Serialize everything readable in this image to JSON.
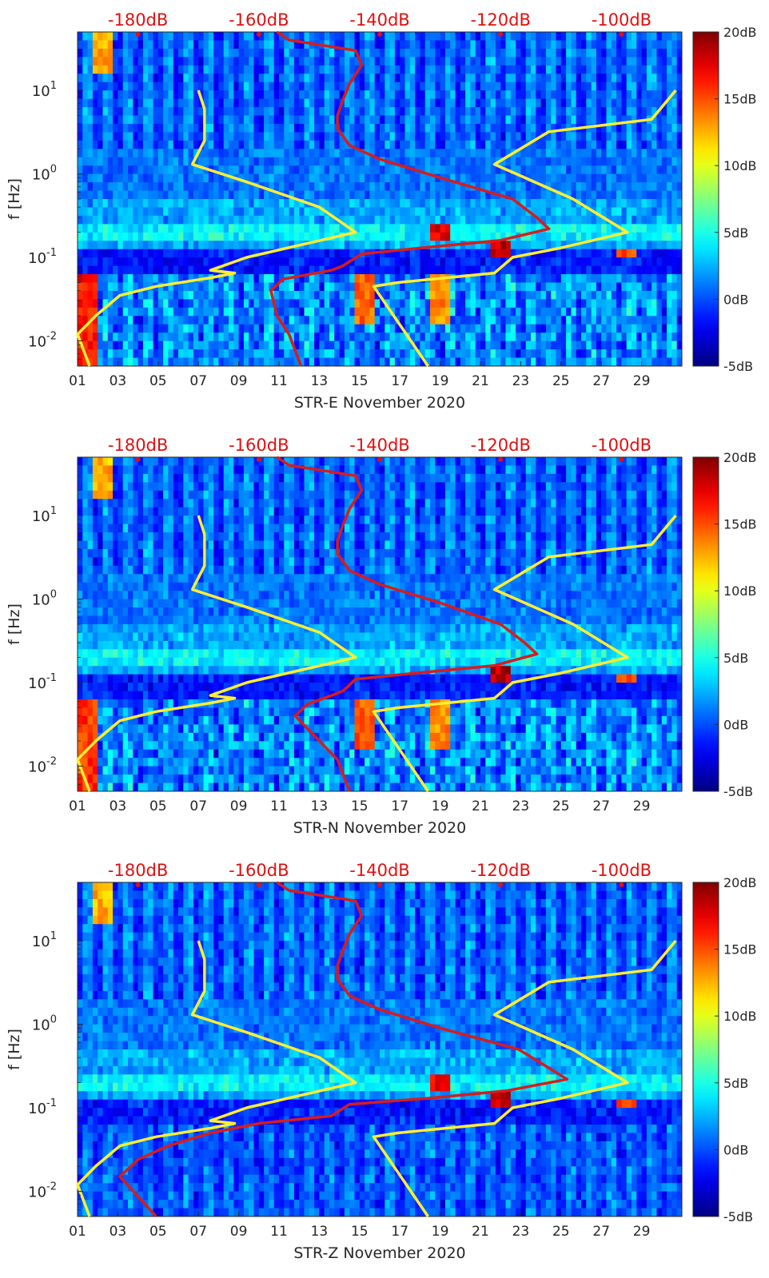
{
  "colors": {
    "red_curve": "#d81c1c",
    "yellow_curve": "#ffee33",
    "top_axis_text": "#e01010",
    "axis_text": "#262626",
    "colormap": [
      "#00008f",
      "#0000ff",
      "#0080ff",
      "#00ffff",
      "#80ff80",
      "#ffff00",
      "#ff8000",
      "#ff0000",
      "#800000"
    ]
  },
  "chart_data": [
    {
      "type": "heatmap",
      "title": "",
      "xlabel": "STR-E November 2020",
      "ylabel": "f [Hz]",
      "x_tick_labels": [
        "01",
        "03",
        "05",
        "07",
        "09",
        "11",
        "13",
        "15",
        "17",
        "19",
        "21",
        "23",
        "25",
        "27",
        "29"
      ],
      "x_tick_days": [
        1,
        3,
        5,
        7,
        9,
        11,
        13,
        15,
        17,
        19,
        21,
        23,
        25,
        27,
        29
      ],
      "xlim": [
        1,
        31
      ],
      "yscale": "log",
      "ylim": [
        0.005,
        50
      ],
      "y_tick_labels": [
        {
          "base": "10",
          "exp": "1",
          "value": 10
        },
        {
          "base": "10",
          "exp": "0",
          "value": 1
        },
        {
          "base": "10",
          "exp": "-1",
          "value": 0.1
        },
        {
          "base": "10",
          "exp": "-2",
          "value": 0.01
        }
      ],
      "top_axis": {
        "label_values": [
          -180,
          -160,
          -140,
          -120,
          -100
        ],
        "labels": [
          "-180dB",
          "-160dB",
          "-140dB",
          "-120dB",
          "-100dB"
        ],
        "range_db": [
          -190,
          -90
        ]
      },
      "colorbar": {
        "labels": [
          "20dB",
          "15dB",
          "10dB",
          "5dB",
          "0dB",
          "-5dB"
        ],
        "values": [
          20,
          15,
          10,
          5,
          0,
          -5
        ],
        "range": [
          -5,
          20
        ]
      },
      "red_curve_db_vs_f": [
        [
          -157,
          50
        ],
        [
          -155,
          40
        ],
        [
          -144,
          30
        ],
        [
          -143,
          20
        ],
        [
          -145,
          12
        ],
        [
          -146,
          8
        ],
        [
          -147,
          5
        ],
        [
          -147,
          3.5
        ],
        [
          -145,
          2.2
        ],
        [
          -140,
          1.5
        ],
        [
          -130,
          0.9
        ],
        [
          -118,
          0.5
        ],
        [
          -114,
          0.3
        ],
        [
          -112,
          0.22
        ],
        [
          -120,
          0.16
        ],
        [
          -133,
          0.13
        ],
        [
          -143,
          0.11
        ],
        [
          -146,
          0.08
        ],
        [
          -148,
          0.07
        ],
        [
          -156,
          0.055
        ],
        [
          -158,
          0.04
        ],
        [
          -157,
          0.02
        ],
        [
          -155,
          0.012
        ],
        [
          -153,
          0.005
        ]
      ],
      "yellow_left_db_vs_f": [
        [
          -170,
          10
        ],
        [
          -169,
          6
        ],
        [
          -169,
          2.5
        ],
        [
          -171,
          1.3
        ],
        [
          -162,
          0.8
        ],
        [
          -150,
          0.4
        ],
        [
          -144,
          0.2
        ],
        [
          -162,
          0.1
        ],
        [
          -168,
          0.07
        ],
        [
          -164,
          0.065
        ],
        [
          -168,
          0.057
        ],
        [
          -177,
          0.045
        ],
        [
          -183,
          0.035
        ],
        [
          -187,
          0.02
        ],
        [
          -190,
          0.012
        ],
        [
          -188,
          0.005
        ]
      ],
      "yellow_right_db_vs_f": [
        [
          -91,
          10
        ],
        [
          -95,
          4.5
        ],
        [
          -112,
          3.2
        ],
        [
          -121,
          1.3
        ],
        [
          -108,
          0.5
        ],
        [
          -99,
          0.2
        ],
        [
          -110,
          0.13
        ],
        [
          -118,
          0.1
        ],
        [
          -121,
          0.065
        ],
        [
          -137,
          0.05
        ],
        [
          -141,
          0.045
        ],
        [
          -132,
          0.005
        ]
      ],
      "hotspots": [
        {
          "day": 1.6,
          "f_lo": 0.005,
          "f_hi": 0.06,
          "level": 18
        },
        {
          "day": 2.2,
          "f_lo": 15,
          "f_hi": 45,
          "level": 14
        },
        {
          "day": 19.1,
          "f_lo": 0.16,
          "f_hi": 0.23,
          "level": 19
        },
        {
          "day": 22.1,
          "f_lo": 0.11,
          "f_hi": 0.15,
          "level": 20
        },
        {
          "day": 28.2,
          "f_lo": 0.11,
          "f_hi": 0.14,
          "level": 17
        },
        {
          "day": 15.3,
          "f_lo": 0.016,
          "f_hi": 0.06,
          "level": 16
        },
        {
          "day": 19.0,
          "f_lo": 0.016,
          "f_hi": 0.06,
          "level": 15
        }
      ]
    },
    {
      "type": "heatmap",
      "title": "",
      "xlabel": "STR-N November 2020",
      "ylabel": "f [Hz]",
      "x_tick_labels": [
        "01",
        "03",
        "05",
        "07",
        "09",
        "11",
        "13",
        "15",
        "17",
        "19",
        "21",
        "23",
        "25",
        "27",
        "29"
      ],
      "x_tick_days": [
        1,
        3,
        5,
        7,
        9,
        11,
        13,
        15,
        17,
        19,
        21,
        23,
        25,
        27,
        29
      ],
      "xlim": [
        1,
        31
      ],
      "yscale": "log",
      "ylim": [
        0.005,
        50
      ],
      "y_tick_labels": [
        {
          "base": "10",
          "exp": "1",
          "value": 10
        },
        {
          "base": "10",
          "exp": "0",
          "value": 1
        },
        {
          "base": "10",
          "exp": "-1",
          "value": 0.1
        },
        {
          "base": "10",
          "exp": "-2",
          "value": 0.01
        }
      ],
      "top_axis": {
        "label_values": [
          -180,
          -160,
          -140,
          -120,
          -100
        ],
        "labels": [
          "-180dB",
          "-160dB",
          "-140dB",
          "-120dB",
          "-100dB"
        ],
        "range_db": [
          -190,
          -90
        ]
      },
      "colorbar": {
        "labels": [
          "20dB",
          "15dB",
          "10dB",
          "5dB",
          "0dB",
          "-5dB"
        ],
        "values": [
          20,
          15,
          10,
          5,
          0,
          -5
        ],
        "range": [
          -5,
          20
        ]
      },
      "red_curve_db_vs_f": [
        [
          -157,
          50
        ],
        [
          -155,
          40
        ],
        [
          -144,
          30
        ],
        [
          -143,
          20
        ],
        [
          -145,
          12
        ],
        [
          -146,
          8
        ],
        [
          -147,
          5
        ],
        [
          -147,
          3.5
        ],
        [
          -145,
          2.2
        ],
        [
          -140,
          1.5
        ],
        [
          -130,
          0.9
        ],
        [
          -120,
          0.5
        ],
        [
          -116,
          0.3
        ],
        [
          -114,
          0.22
        ],
        [
          -121,
          0.16
        ],
        [
          -134,
          0.13
        ],
        [
          -144,
          0.11
        ],
        [
          -146,
          0.08
        ],
        [
          -148,
          0.07
        ],
        [
          -152,
          0.055
        ],
        [
          -154,
          0.04
        ],
        [
          -150,
          0.02
        ],
        [
          -147,
          0.012
        ],
        [
          -145,
          0.005
        ]
      ],
      "yellow_left_db_vs_f": [
        [
          -170,
          10
        ],
        [
          -169,
          6
        ],
        [
          -169,
          2.5
        ],
        [
          -171,
          1.3
        ],
        [
          -162,
          0.8
        ],
        [
          -150,
          0.4
        ],
        [
          -144,
          0.2
        ],
        [
          -162,
          0.1
        ],
        [
          -168,
          0.07
        ],
        [
          -164,
          0.065
        ],
        [
          -168,
          0.057
        ],
        [
          -177,
          0.045
        ],
        [
          -183,
          0.035
        ],
        [
          -187,
          0.02
        ],
        [
          -190,
          0.012
        ],
        [
          -188,
          0.005
        ]
      ],
      "yellow_right_db_vs_f": [
        [
          -91,
          10
        ],
        [
          -95,
          4.5
        ],
        [
          -112,
          3.2
        ],
        [
          -121,
          1.3
        ],
        [
          -108,
          0.5
        ],
        [
          -99,
          0.2
        ],
        [
          -110,
          0.13
        ],
        [
          -118,
          0.1
        ],
        [
          -121,
          0.065
        ],
        [
          -137,
          0.05
        ],
        [
          -141,
          0.045
        ],
        [
          -132,
          0.005
        ]
      ],
      "hotspots": [
        {
          "day": 1.6,
          "f_lo": 0.005,
          "f_hi": 0.06,
          "level": 17
        },
        {
          "day": 2.2,
          "f_lo": 15,
          "f_hi": 45,
          "level": 14
        },
        {
          "day": 22.1,
          "f_lo": 0.11,
          "f_hi": 0.15,
          "level": 20
        },
        {
          "day": 28.2,
          "f_lo": 0.11,
          "f_hi": 0.14,
          "level": 17
        },
        {
          "day": 15.3,
          "f_lo": 0.016,
          "f_hi": 0.06,
          "level": 16
        },
        {
          "day": 19.0,
          "f_lo": 0.016,
          "f_hi": 0.06,
          "level": 15
        }
      ]
    },
    {
      "type": "heatmap",
      "title": "",
      "xlabel": "STR-Z November 2020",
      "ylabel": "f [Hz]",
      "x_tick_labels": [
        "01",
        "03",
        "05",
        "07",
        "09",
        "11",
        "13",
        "15",
        "17",
        "19",
        "21",
        "23",
        "25",
        "27",
        "29"
      ],
      "x_tick_days": [
        1,
        3,
        5,
        7,
        9,
        11,
        13,
        15,
        17,
        19,
        21,
        23,
        25,
        27,
        29
      ],
      "xlim": [
        1,
        31
      ],
      "yscale": "log",
      "ylim": [
        0.005,
        50
      ],
      "y_tick_labels": [
        {
          "base": "10",
          "exp": "1",
          "value": 10
        },
        {
          "base": "10",
          "exp": "0",
          "value": 1
        },
        {
          "base": "10",
          "exp": "-1",
          "value": 0.1
        },
        {
          "base": "10",
          "exp": "-2",
          "value": 0.01
        }
      ],
      "top_axis": {
        "label_values": [
          -180,
          -160,
          -140,
          -120,
          -100
        ],
        "labels": [
          "-180dB",
          "-160dB",
          "-140dB",
          "-120dB",
          "-100dB"
        ],
        "range_db": [
          -190,
          -90
        ]
      },
      "colorbar": {
        "labels": [
          "20dB",
          "15dB",
          "10dB",
          "5dB",
          "0dB",
          "-5dB"
        ],
        "values": [
          20,
          15,
          10,
          5,
          0,
          -5
        ],
        "range": [
          -5,
          20
        ]
      },
      "red_curve_db_vs_f": [
        [
          -157,
          50
        ],
        [
          -155,
          40
        ],
        [
          -144,
          30
        ],
        [
          -143,
          20
        ],
        [
          -145,
          12
        ],
        [
          -146,
          8
        ],
        [
          -147,
          5
        ],
        [
          -147,
          3.5
        ],
        [
          -145,
          2.2
        ],
        [
          -140,
          1.5
        ],
        [
          -130,
          0.9
        ],
        [
          -117,
          0.5
        ],
        [
          -112,
          0.3
        ],
        [
          -109,
          0.22
        ],
        [
          -119,
          0.16
        ],
        [
          -132,
          0.13
        ],
        [
          -145,
          0.11
        ],
        [
          -148,
          0.08
        ],
        [
          -160,
          0.065
        ],
        [
          -168,
          0.05
        ],
        [
          -175,
          0.035
        ],
        [
          -180,
          0.024
        ],
        [
          -183,
          0.015
        ],
        [
          -177,
          0.005
        ]
      ],
      "yellow_left_db_vs_f": [
        [
          -170,
          10
        ],
        [
          -169,
          6
        ],
        [
          -169,
          2.5
        ],
        [
          -171,
          1.3
        ],
        [
          -162,
          0.8
        ],
        [
          -150,
          0.4
        ],
        [
          -144,
          0.2
        ],
        [
          -162,
          0.1
        ],
        [
          -168,
          0.07
        ],
        [
          -164,
          0.065
        ],
        [
          -168,
          0.057
        ],
        [
          -177,
          0.045
        ],
        [
          -183,
          0.035
        ],
        [
          -187,
          0.02
        ],
        [
          -190,
          0.012
        ],
        [
          -188,
          0.005
        ]
      ],
      "yellow_right_db_vs_f": [
        [
          -91,
          10
        ],
        [
          -95,
          4.5
        ],
        [
          -112,
          3.2
        ],
        [
          -121,
          1.3
        ],
        [
          -108,
          0.5
        ],
        [
          -99,
          0.2
        ],
        [
          -110,
          0.13
        ],
        [
          -118,
          0.1
        ],
        [
          -121,
          0.065
        ],
        [
          -137,
          0.05
        ],
        [
          -141,
          0.045
        ],
        [
          -132,
          0.005
        ]
      ],
      "hotspots": [
        {
          "day": 2.2,
          "f_lo": 15,
          "f_hi": 45,
          "level": 14
        },
        {
          "day": 19.1,
          "f_lo": 0.16,
          "f_hi": 0.23,
          "level": 19
        },
        {
          "day": 22.1,
          "f_lo": 0.11,
          "f_hi": 0.15,
          "level": 20
        },
        {
          "day": 28.2,
          "f_lo": 0.11,
          "f_hi": 0.14,
          "level": 17
        }
      ]
    }
  ]
}
